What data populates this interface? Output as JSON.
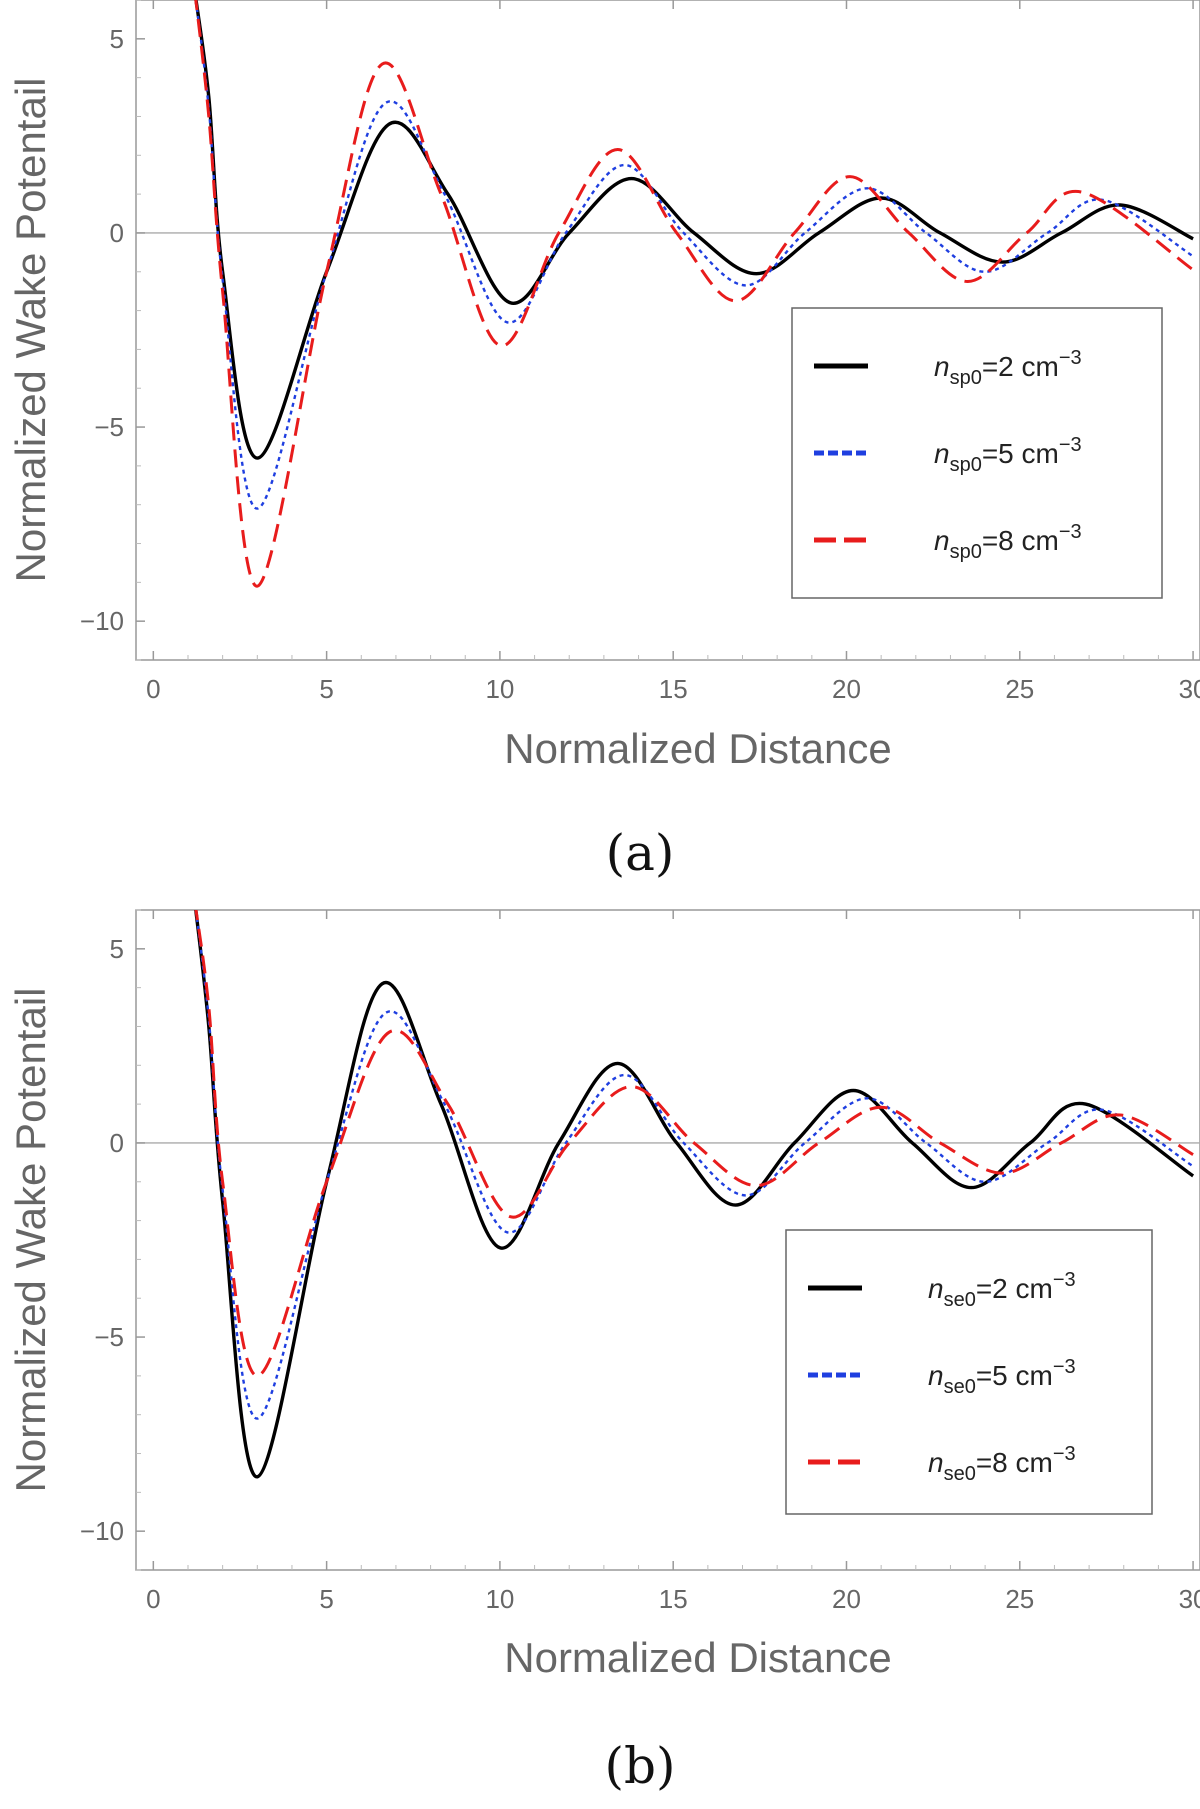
{
  "chart_data": [
    {
      "type": "line",
      "panel_label": "(a)",
      "xlabel": "Normalized Distance",
      "ylabel": "Normalized  Wake Potentail",
      "xlim": [
        -0.5,
        30.2
      ],
      "ylim": [
        -11,
        6
      ],
      "xticks": [
        0,
        5,
        10,
        15,
        20,
        25,
        30
      ],
      "yticks": [
        5,
        0,
        -5,
        -10
      ],
      "xtick_labels": [
        "0",
        "5",
        "10",
        "15",
        "20",
        "25",
        "30"
      ],
      "ytick_labels": [
        "5",
        "0",
        "−5",
        "−10"
      ],
      "zero_line": true,
      "legend": {
        "placement": "right",
        "entries": [
          {
            "prefix": "n",
            "sub": "sp0",
            "mid": "=2 cm",
            "sup": "−3"
          },
          {
            "prefix": "n",
            "sub": "sp0",
            "mid": "=5 cm",
            "sup": "−3"
          },
          {
            "prefix": "n",
            "sub": "sp0",
            "mid": "=8 cm",
            "sup": "−3"
          }
        ]
      },
      "series": [
        {
          "color": "#000000",
          "style": "solid",
          "x0": 1.2,
          "x0_y": 6.2,
          "points": [
            [
              1.6,
              3.5
            ],
            [
              2.0,
              -1.0
            ],
            [
              3.0,
              -5.8
            ],
            [
              5.0,
              -1.0
            ],
            [
              6.8,
              2.8
            ],
            [
              8.5,
              1.0
            ],
            [
              10.3,
              -1.8
            ],
            [
              12.0,
              0.0
            ],
            [
              13.8,
              1.4
            ],
            [
              15.6,
              0.0
            ],
            [
              17.4,
              -1.05
            ],
            [
              19.2,
              0.0
            ],
            [
              21.0,
              0.9
            ],
            [
              22.7,
              0.0
            ],
            [
              24.5,
              -0.75
            ],
            [
              26.2,
              0.0
            ],
            [
              27.9,
              0.72
            ],
            [
              30.0,
              -0.15
            ]
          ]
        },
        {
          "color": "#1f3fe0",
          "style": "dotted",
          "x0": 1.2,
          "x0_y": 6.2,
          "points": [
            [
              1.6,
              3.2
            ],
            [
              2.0,
              -1.2
            ],
            [
              3.0,
              -7.1
            ],
            [
              5.0,
              -1.0
            ],
            [
              6.7,
              3.35
            ],
            [
              8.4,
              1.0
            ],
            [
              10.2,
              -2.3
            ],
            [
              11.9,
              0.0
            ],
            [
              13.6,
              1.75
            ],
            [
              15.3,
              0.0
            ],
            [
              17.1,
              -1.35
            ],
            [
              18.8,
              0.0
            ],
            [
              20.6,
              1.15
            ],
            [
              22.3,
              0.0
            ],
            [
              24.0,
              -1.0
            ],
            [
              25.8,
              0.0
            ],
            [
              27.4,
              0.85
            ],
            [
              30.0,
              -0.6
            ]
          ]
        },
        {
          "color": "#e81c1c",
          "style": "dashed",
          "x0": 1.2,
          "x0_y": 6.2,
          "points": [
            [
              1.6,
              3.0
            ],
            [
              2.0,
              -1.5
            ],
            [
              3.0,
              -9.1
            ],
            [
              5.0,
              -1.0
            ],
            [
              6.6,
              4.35
            ],
            [
              8.3,
              1.0
            ],
            [
              10.0,
              -2.9
            ],
            [
              11.7,
              0.0
            ],
            [
              13.4,
              2.15
            ],
            [
              15.1,
              0.0
            ],
            [
              16.8,
              -1.75
            ],
            [
              18.5,
              0.0
            ],
            [
              20.1,
              1.45
            ],
            [
              21.8,
              0.0
            ],
            [
              23.5,
              -1.25
            ],
            [
              25.2,
              0.0
            ],
            [
              26.8,
              1.05
            ],
            [
              30.0,
              -0.95
            ]
          ]
        }
      ]
    },
    {
      "type": "line",
      "panel_label": "(b)",
      "xlabel": "Normalized Distance",
      "ylabel": "Normalized  Wake Potentail",
      "xlim": [
        -0.5,
        30.2
      ],
      "ylim": [
        -11,
        6
      ],
      "xticks": [
        0,
        5,
        10,
        15,
        20,
        25,
        30
      ],
      "yticks": [
        5,
        0,
        -5,
        -10
      ],
      "xtick_labels": [
        "0",
        "5",
        "10",
        "15",
        "20",
        "25",
        "30"
      ],
      "ytick_labels": [
        "5",
        "0",
        "−5",
        "−10"
      ],
      "zero_line": true,
      "legend": {
        "placement": "right",
        "entries": [
          {
            "prefix": "n",
            "sub": "se0",
            "mid": "=2 cm",
            "sup": "−3"
          },
          {
            "prefix": "n",
            "sub": "se0",
            "mid": "=5 cm",
            "sup": "−3"
          },
          {
            "prefix": "n",
            "sub": "se0",
            "mid": "=8 cm",
            "sup": "−3"
          }
        ]
      },
      "series": [
        {
          "color": "#000000",
          "style": "solid",
          "x0": 1.2,
          "x0_y": 6.2,
          "points": [
            [
              1.6,
              3.0
            ],
            [
              2.0,
              -1.5
            ],
            [
              3.0,
              -8.6
            ],
            [
              5.0,
              -1.0
            ],
            [
              6.6,
              4.1
            ],
            [
              8.3,
              1.0
            ],
            [
              10.0,
              -2.7
            ],
            [
              11.7,
              0.0
            ],
            [
              13.4,
              2.05
            ],
            [
              15.1,
              0.0
            ],
            [
              16.8,
              -1.6
            ],
            [
              18.5,
              0.0
            ],
            [
              20.2,
              1.35
            ],
            [
              21.9,
              0.0
            ],
            [
              23.6,
              -1.15
            ],
            [
              25.3,
              0.0
            ],
            [
              26.9,
              1.0
            ],
            [
              30.0,
              -0.85
            ]
          ]
        },
        {
          "color": "#1f3fe0",
          "style": "dotted",
          "x0": 1.2,
          "x0_y": 6.2,
          "points": [
            [
              1.6,
              3.2
            ],
            [
              2.0,
              -1.2
            ],
            [
              3.0,
              -7.1
            ],
            [
              5.0,
              -1.0
            ],
            [
              6.7,
              3.35
            ],
            [
              8.4,
              1.0
            ],
            [
              10.2,
              -2.3
            ],
            [
              11.9,
              0.0
            ],
            [
              13.6,
              1.75
            ],
            [
              15.3,
              0.0
            ],
            [
              17.1,
              -1.35
            ],
            [
              18.8,
              0.0
            ],
            [
              20.6,
              1.15
            ],
            [
              22.3,
              0.0
            ],
            [
              24.0,
              -1.0
            ],
            [
              25.8,
              0.0
            ],
            [
              27.4,
              0.85
            ],
            [
              30.0,
              -0.6
            ]
          ]
        },
        {
          "color": "#e81c1c",
          "style": "dashed",
          "x0": 1.2,
          "x0_y": 6.2,
          "points": [
            [
              1.6,
              3.5
            ],
            [
              2.0,
              -1.0
            ],
            [
              3.0,
              -6.0
            ],
            [
              5.0,
              -1.0
            ],
            [
              6.8,
              2.85
            ],
            [
              8.5,
              1.0
            ],
            [
              10.3,
              -1.9
            ],
            [
              12.0,
              0.0
            ],
            [
              13.8,
              1.45
            ],
            [
              15.6,
              0.0
            ],
            [
              17.4,
              -1.1
            ],
            [
              19.2,
              0.0
            ],
            [
              21.0,
              0.92
            ],
            [
              22.7,
              0.0
            ],
            [
              24.5,
              -0.78
            ],
            [
              26.2,
              0.0
            ],
            [
              27.9,
              0.72
            ],
            [
              30.0,
              -0.3
            ]
          ]
        }
      ]
    }
  ]
}
